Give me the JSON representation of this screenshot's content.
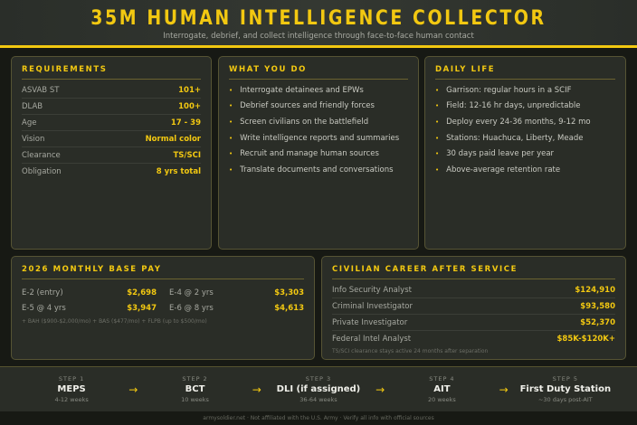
{
  "header": {
    "title": "35M HUMAN INTELLIGENCE COLLECTOR",
    "subtitle": "Interrogate, debrief, and collect intelligence through face-to-face human contact"
  },
  "requirements": {
    "title": "REQUIREMENTS",
    "rows": [
      {
        "label": "ASVAB ST",
        "value": "101+"
      },
      {
        "label": "DLAB",
        "value": "100+"
      },
      {
        "label": "Age",
        "value": "17 - 39"
      },
      {
        "label": "Vision",
        "value": "Normal color"
      },
      {
        "label": "Clearance",
        "value": "TS/SCI"
      },
      {
        "label": "Obligation",
        "value": "8 yrs total"
      }
    ]
  },
  "what_you_do": {
    "title": "WHAT YOU DO",
    "items": [
      "Interrogate detainees and EPWs",
      "Debrief sources and friendly forces",
      "Screen civilians on the battlefield",
      "Write intelligence reports and summaries",
      "Recruit and manage human sources",
      "Translate documents and conversations"
    ]
  },
  "daily_life": {
    "title": "DAILY LIFE",
    "items": [
      "Garrison: regular hours in a SCIF",
      "Field: 12-16 hr days, unpredictable",
      "Deploy every 24-36 months, 9-12 mo",
      "Stations: Huachuca, Liberty, Meade",
      "30 days paid leave per year",
      "Above-average retention rate"
    ]
  },
  "pay": {
    "title": "2026 MONTHLY BASE PAY",
    "rows": [
      {
        "label": "E-2 (entry)",
        "value": "$2,698"
      },
      {
        "label": "E-4 @ 2 yrs",
        "value": "$3,303"
      },
      {
        "label": "E-5 @ 4 yrs",
        "value": "$3,947"
      },
      {
        "label": "E-6 @ 8 yrs",
        "value": "$4,613"
      }
    ],
    "note": "+ BAH ($900-$2,000/mo) + BAS ($477/mo) + FLPB (up to $500/mo)"
  },
  "civilian": {
    "title": "CIVILIAN CAREER AFTER SERVICE",
    "rows": [
      {
        "label": "Info Security Analyst",
        "value": "$124,910"
      },
      {
        "label": "Criminal Investigator",
        "value": "$93,580"
      },
      {
        "label": "Private Investigator",
        "value": "$52,370"
      },
      {
        "label": "Federal Intel Analyst",
        "value": "$85K-$120K+"
      }
    ],
    "note": "TS/SCI clearance stays active 24 months after separation"
  },
  "steps": [
    {
      "num": "STEP 1",
      "title": "MEPS",
      "desc": "4-12 weeks"
    },
    {
      "num": "STEP 2",
      "title": "BCT",
      "desc": "10 weeks"
    },
    {
      "num": "STEP 3",
      "title": "DLI (if assigned)",
      "desc": "36-64 weeks"
    },
    {
      "num": "STEP 4",
      "title": "AIT",
      "desc": "20 weeks"
    },
    {
      "num": "STEP 5",
      "title": "First Duty Station",
      "desc": "~30 days post-AIT"
    }
  ],
  "arrow": "→",
  "bullet": "•",
  "footer": "armysoldier.net · Not affiliated with the U.S. Army · Verify all info with official sources"
}
